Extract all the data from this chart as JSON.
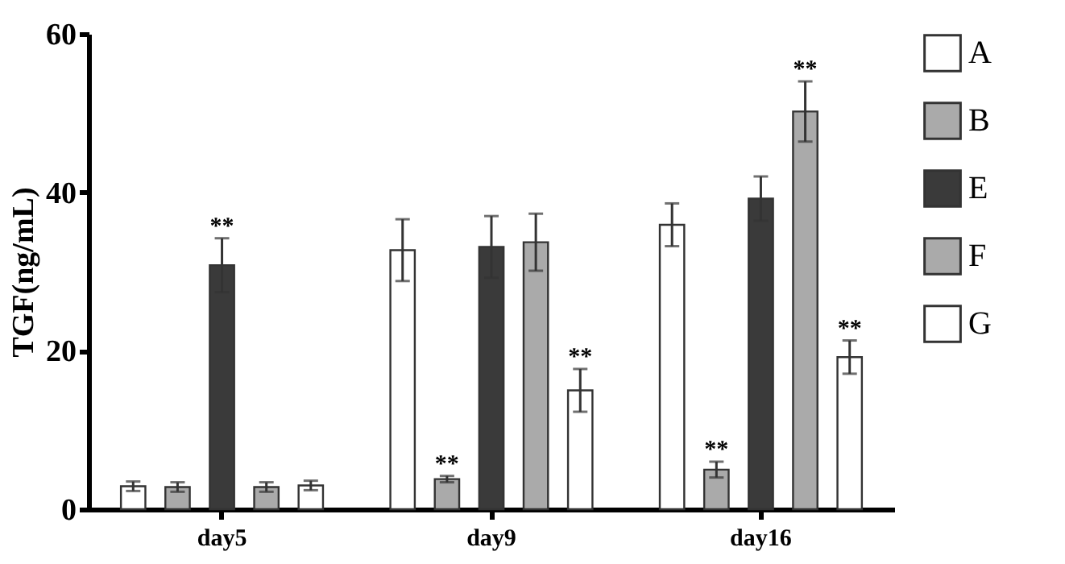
{
  "chart_data": {
    "type": "bar",
    "ylabel": "TGF(ng/mL)",
    "categories": [
      "day5",
      "day9",
      "day16"
    ],
    "series": [
      {
        "name": "A",
        "color": "#ffffff",
        "values": [
          2.9,
          32.7,
          35.9
        ],
        "errors": [
          0.6,
          3.9,
          2.7
        ]
      },
      {
        "name": "B",
        "color": "#aaaaaa",
        "values": [
          2.8,
          3.8,
          5.0
        ],
        "errors": [
          0.6,
          0.4,
          1.0
        ],
        "value_labels": [
          null,
          "**",
          "**"
        ]
      },
      {
        "name": "E",
        "color": "#3a3a3a",
        "values": [
          30.8,
          33.1,
          39.2
        ],
        "errors": [
          3.4,
          3.9,
          2.8
        ],
        "value_labels": [
          "**",
          null,
          null
        ]
      },
      {
        "name": "F",
        "color": "#aaaaaa",
        "values": [
          2.8,
          33.7,
          50.2
        ],
        "errors": [
          0.6,
          3.6,
          3.8
        ],
        "value_labels": [
          null,
          null,
          "**"
        ]
      },
      {
        "name": "G",
        "color": "#ffffff",
        "values": [
          3.0,
          15.0,
          19.2
        ],
        "errors": [
          0.6,
          2.7,
          2.1
        ],
        "value_labels": [
          null,
          "**",
          "**"
        ]
      }
    ],
    "ylim": [
      0,
      60
    ],
    "yticks": [
      0,
      20,
      40,
      60
    ],
    "grid": false,
    "legend": "right"
  }
}
